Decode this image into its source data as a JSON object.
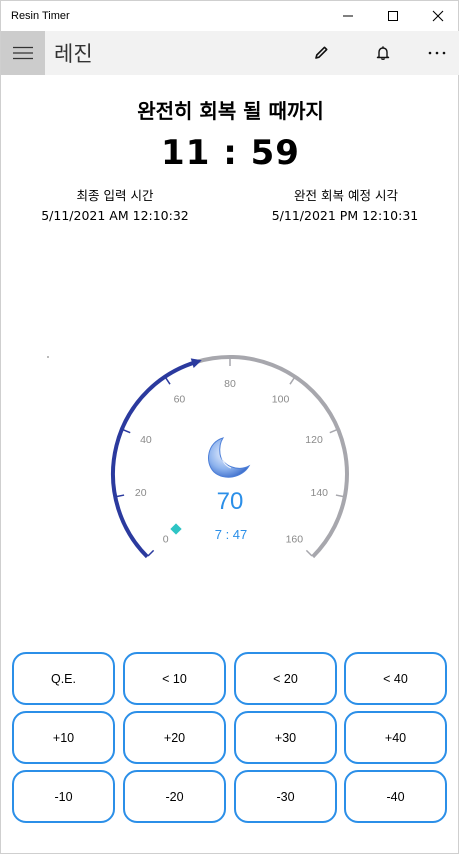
{
  "window": {
    "title": "Resin Timer"
  },
  "appbar": {
    "page_title": "레진"
  },
  "main": {
    "heading": "완전히 회복 될 때까지",
    "timer": "11 : 59",
    "last_input": {
      "label": "최종 입력 시간",
      "value": "5/11/2021 AM 12:10:32"
    },
    "full_recovery": {
      "label": "완전 회복 예정 시각",
      "value": "5/11/2021 PM 12:10:31"
    }
  },
  "gauge": {
    "value": 70,
    "min": 0,
    "max": 160,
    "tick_labels": [
      "0",
      "20",
      "40",
      "60",
      "80",
      "100",
      "120",
      "140",
      "160"
    ],
    "value_text": "70",
    "sub_time": "7 : 47",
    "colors": {
      "fill": "#2b3a9e",
      "track": "#a7a7ad",
      "value_text": "#2b8fe8",
      "marker": "#2ec4c4"
    },
    "icon": "crescent-moon-icon"
  },
  "buttons": {
    "row1": [
      "Q.E.",
      "< 10",
      "< 20",
      "< 40"
    ],
    "row2": [
      "+10",
      "+20",
      "+30",
      "+40"
    ],
    "row3": [
      "-10",
      "-20",
      "-30",
      "-40"
    ],
    "border_color": "#2b8fe8"
  }
}
